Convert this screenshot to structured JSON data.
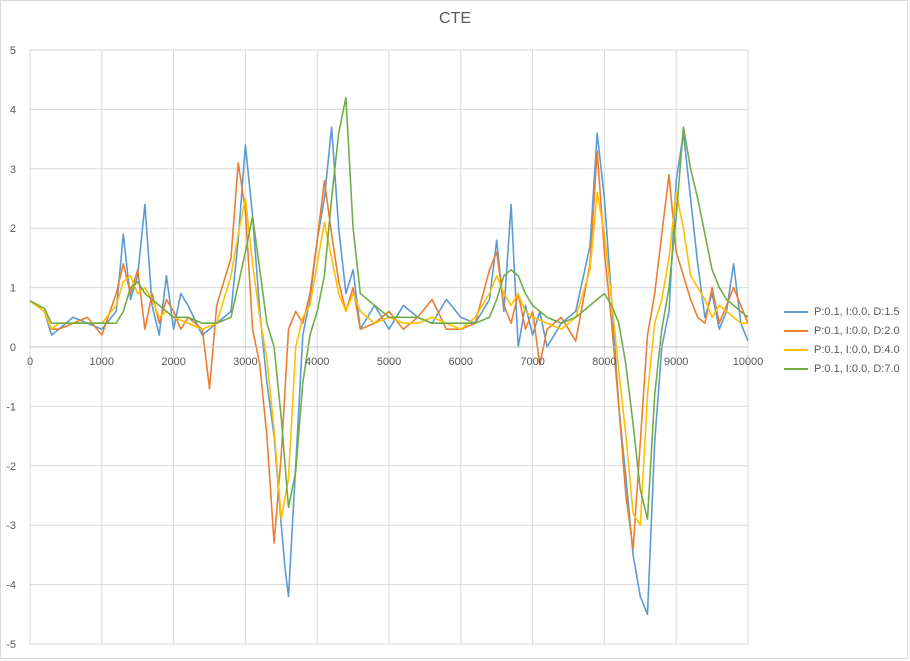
{
  "chart_data": {
    "type": "line",
    "title": "CTE",
    "xlabel": "",
    "ylabel": "",
    "xlim": [
      0,
      10000
    ],
    "ylim": [
      -5,
      5
    ],
    "x_ticks": [
      0,
      1000,
      2000,
      3000,
      4000,
      5000,
      6000,
      7000,
      8000,
      9000,
      10000
    ],
    "y_ticks": [
      -5,
      -4,
      -3,
      -2,
      -1,
      0,
      1,
      2,
      3,
      4,
      5
    ],
    "grid": true,
    "legend_position": "right",
    "series": [
      {
        "name": "P:0.1, I:0.0, D:1.5",
        "color": "#5b9bd5",
        "x": [
          0,
          200,
          300,
          400,
          600,
          800,
          1000,
          1200,
          1300,
          1400,
          1500,
          1600,
          1700,
          1800,
          1900,
          2000,
          2100,
          2200,
          2400,
          2600,
          2800,
          2900,
          3000,
          3100,
          3200,
          3300,
          3400,
          3500,
          3550,
          3600,
          3700,
          3800,
          3900,
          4000,
          4100,
          4200,
          4300,
          4400,
          4500,
          4600,
          4800,
          5000,
          5200,
          5400,
          5600,
          5800,
          6000,
          6200,
          6400,
          6500,
          6600,
          6700,
          6800,
          6900,
          7000,
          7100,
          7200,
          7400,
          7600,
          7800,
          7900,
          8000,
          8100,
          8200,
          8300,
          8400,
          8500,
          8600,
          8700,
          8800,
          8900,
          9000,
          9100,
          9200,
          9300,
          9400,
          9500,
          9600,
          9700,
          9800,
          9900,
          10000
        ],
        "values": [
          0.78,
          0.6,
          0.2,
          0.3,
          0.5,
          0.4,
          0.3,
          0.6,
          1.9,
          0.8,
          1.2,
          2.4,
          0.7,
          0.2,
          1.2,
          0.3,
          0.9,
          0.7,
          0.2,
          0.4,
          0.6,
          1.8,
          3.4,
          2.2,
          0.6,
          -0.6,
          -1.5,
          -3.0,
          -3.7,
          -4.2,
          -2.0,
          0.2,
          0.8,
          1.8,
          2.5,
          3.7,
          2.0,
          0.9,
          1.3,
          0.3,
          0.7,
          0.3,
          0.7,
          0.5,
          0.4,
          0.8,
          0.5,
          0.4,
          0.8,
          1.8,
          0.6,
          2.4,
          0.0,
          0.7,
          0.2,
          0.6,
          0.0,
          0.4,
          0.6,
          1.7,
          3.6,
          2.5,
          0.8,
          -1.0,
          -2.2,
          -3.5,
          -4.2,
          -4.5,
          -1.6,
          0.0,
          0.6,
          2.8,
          3.6,
          2.5,
          1.4,
          0.5,
          0.9,
          0.3,
          0.6,
          1.4,
          0.4,
          0.1
        ]
      },
      {
        "name": "P:0.1, I:0.0, D:2.0",
        "color": "#ed7d31",
        "x": [
          0,
          200,
          300,
          400,
          600,
          800,
          1000,
          1200,
          1300,
          1400,
          1500,
          1600,
          1700,
          1800,
          1900,
          2000,
          2100,
          2200,
          2400,
          2500,
          2600,
          2800,
          2900,
          3000,
          3100,
          3200,
          3300,
          3400,
          3500,
          3600,
          3700,
          3800,
          3900,
          4000,
          4100,
          4200,
          4300,
          4400,
          4500,
          4600,
          4800,
          5000,
          5200,
          5400,
          5600,
          5800,
          6000,
          6200,
          6400,
          6500,
          6600,
          6700,
          6800,
          6900,
          7000,
          7100,
          7200,
          7400,
          7600,
          7800,
          7900,
          8000,
          8100,
          8200,
          8300,
          8400,
          8500,
          8600,
          8700,
          8800,
          8900,
          9000,
          9100,
          9200,
          9300,
          9400,
          9500,
          9600,
          9700,
          9800,
          9900,
          10000
        ],
        "values": [
          0.78,
          0.6,
          0.3,
          0.3,
          0.4,
          0.5,
          0.2,
          0.9,
          1.4,
          0.9,
          1.3,
          0.3,
          0.9,
          0.4,
          0.8,
          0.6,
          0.3,
          0.5,
          0.3,
          -0.7,
          0.7,
          1.5,
          3.1,
          2.3,
          0.3,
          -0.3,
          -1.5,
          -3.3,
          -1.8,
          0.3,
          0.6,
          0.4,
          0.9,
          1.8,
          2.8,
          1.9,
          1.1,
          0.6,
          1.0,
          0.3,
          0.4,
          0.6,
          0.3,
          0.5,
          0.8,
          0.3,
          0.3,
          0.4,
          1.3,
          1.6,
          0.7,
          0.4,
          0.9,
          0.3,
          0.6,
          -0.3,
          0.3,
          0.5,
          0.1,
          1.4,
          3.3,
          1.6,
          0.4,
          -1.0,
          -2.5,
          -3.4,
          -1.6,
          0.2,
          0.9,
          1.9,
          2.9,
          1.6,
          1.2,
          0.8,
          0.5,
          0.4,
          1.0,
          0.4,
          0.7,
          1.0,
          0.7,
          0.4
        ]
      },
      {
        "name": "P:0.1, I:0.0, D:4.0",
        "color": "#ffc000",
        "x": [
          0,
          200,
          300,
          400,
          600,
          800,
          1000,
          1200,
          1300,
          1400,
          1500,
          1600,
          1700,
          1800,
          1900,
          2000,
          2200,
          2400,
          2600,
          2800,
          2900,
          3000,
          3100,
          3200,
          3300,
          3400,
          3500,
          3600,
          3700,
          3800,
          3900,
          4000,
          4100,
          4200,
          4300,
          4400,
          4500,
          4600,
          4800,
          5000,
          5200,
          5400,
          5600,
          5800,
          6000,
          6200,
          6400,
          6500,
          6600,
          6700,
          6800,
          6900,
          7000,
          7200,
          7400,
          7600,
          7800,
          7900,
          8000,
          8100,
          8200,
          8300,
          8400,
          8500,
          8600,
          8700,
          8800,
          8900,
          9000,
          9100,
          9200,
          9300,
          9400,
          9500,
          9600,
          9700,
          9800,
          9900,
          10000
        ],
        "values": [
          0.78,
          0.6,
          0.3,
          0.4,
          0.4,
          0.4,
          0.4,
          0.7,
          1.1,
          1.2,
          0.9,
          1.0,
          0.8,
          0.5,
          0.6,
          0.5,
          0.4,
          0.3,
          0.4,
          1.2,
          1.9,
          2.5,
          1.4,
          0.5,
          -0.2,
          -1.4,
          -2.9,
          -2.2,
          0.0,
          0.5,
          0.7,
          1.4,
          2.1,
          1.5,
          0.9,
          0.6,
          0.9,
          0.6,
          0.4,
          0.5,
          0.4,
          0.4,
          0.5,
          0.4,
          0.3,
          0.5,
          0.9,
          1.2,
          0.9,
          0.7,
          0.9,
          0.6,
          0.5,
          0.4,
          0.3,
          0.5,
          1.3,
          2.6,
          1.9,
          0.8,
          -0.4,
          -1.5,
          -2.8,
          -3.0,
          -0.8,
          0.4,
          0.8,
          1.5,
          2.6,
          2.0,
          1.2,
          1.0,
          0.8,
          0.5,
          0.7,
          0.6,
          0.5,
          0.4,
          0.4
        ]
      },
      {
        "name": "P:0.1, I:0.0, D:7.0",
        "color": "#70ad47",
        "x": [
          0,
          200,
          300,
          400,
          600,
          800,
          1000,
          1200,
          1300,
          1400,
          1500,
          1600,
          1700,
          1800,
          1900,
          2000,
          2200,
          2400,
          2600,
          2800,
          3000,
          3100,
          3200,
          3300,
          3400,
          3500,
          3600,
          3700,
          3800,
          3900,
          4000,
          4100,
          4200,
          4300,
          4400,
          4500,
          4600,
          4800,
          5000,
          5200,
          5400,
          5600,
          5800,
          6000,
          6200,
          6400,
          6500,
          6600,
          6700,
          6800,
          6900,
          7000,
          7200,
          7400,
          7600,
          7800,
          8000,
          8100,
          8200,
          8300,
          8400,
          8500,
          8600,
          8700,
          8800,
          8900,
          9000,
          9100,
          9200,
          9300,
          9400,
          9500,
          9600,
          9700,
          9800,
          9900,
          10000
        ],
        "values": [
          0.78,
          0.65,
          0.4,
          0.4,
          0.4,
          0.4,
          0.4,
          0.4,
          0.6,
          1.0,
          1.1,
          0.9,
          0.8,
          0.7,
          0.6,
          0.5,
          0.5,
          0.4,
          0.4,
          0.5,
          1.6,
          2.2,
          1.3,
          0.4,
          0.0,
          -1.2,
          -2.7,
          -2.1,
          -0.6,
          0.2,
          0.6,
          1.2,
          2.5,
          3.6,
          4.2,
          2.0,
          0.9,
          0.7,
          0.5,
          0.5,
          0.5,
          0.4,
          0.4,
          0.4,
          0.4,
          0.5,
          0.8,
          1.2,
          1.3,
          1.2,
          0.9,
          0.7,
          0.5,
          0.4,
          0.5,
          0.7,
          0.9,
          0.7,
          0.4,
          -0.3,
          -1.3,
          -2.4,
          -2.9,
          -0.8,
          0.3,
          1.0,
          2.2,
          3.7,
          3.0,
          2.5,
          1.9,
          1.3,
          1.0,
          0.8,
          0.7,
          0.6,
          0.5
        ]
      }
    ]
  }
}
